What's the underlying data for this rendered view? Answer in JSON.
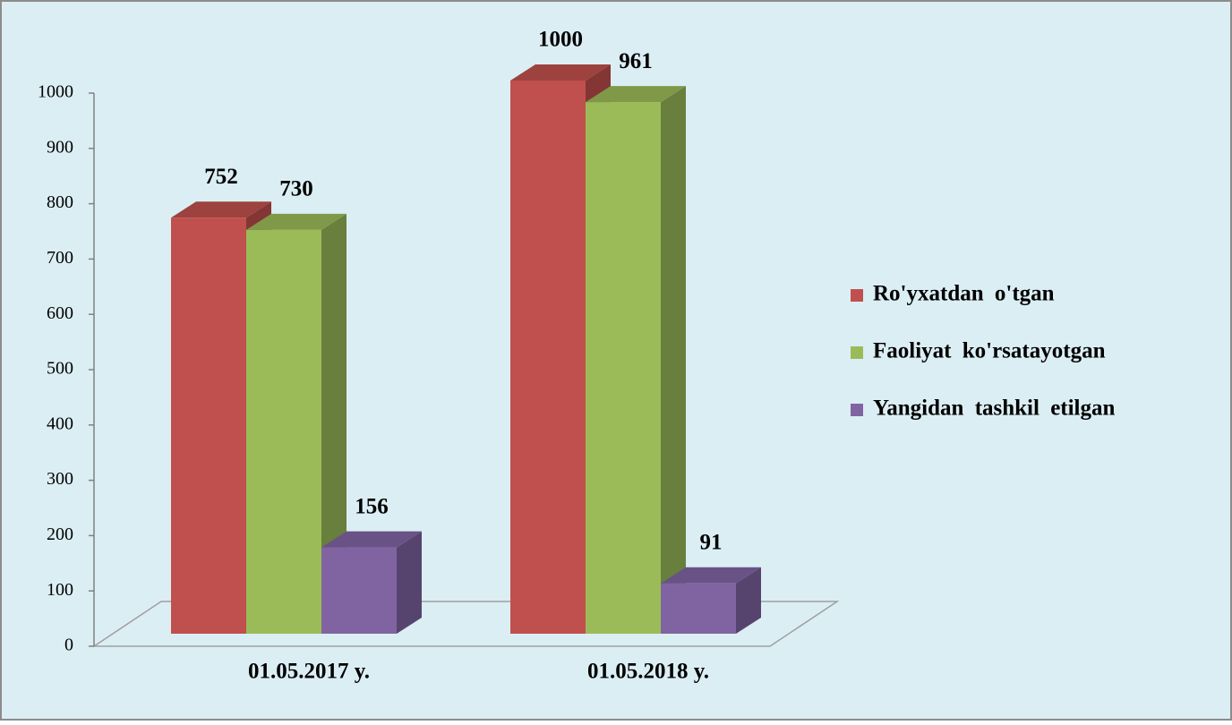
{
  "chart_data": {
    "type": "bar3d",
    "categories": [
      "01.05.2017 y.",
      "01.05.2018 y."
    ],
    "series": [
      {
        "name": "Ro'yxatdan o'tgan",
        "color": "#c0504d",
        "values": [
          752,
          1000
        ]
      },
      {
        "name": "Faoliyat ko'rsatayotgan",
        "color": "#9bbb59",
        "values": [
          730,
          961
        ]
      },
      {
        "name": "Yangidan tashkil etilgan",
        "color": "#8064a2",
        "values": [
          156,
          91
        ]
      }
    ],
    "ylim": [
      0,
      1000
    ],
    "yticks": [
      0,
      100,
      200,
      300,
      400,
      500,
      600,
      700,
      800,
      900,
      1000
    ],
    "legend": "right"
  }
}
